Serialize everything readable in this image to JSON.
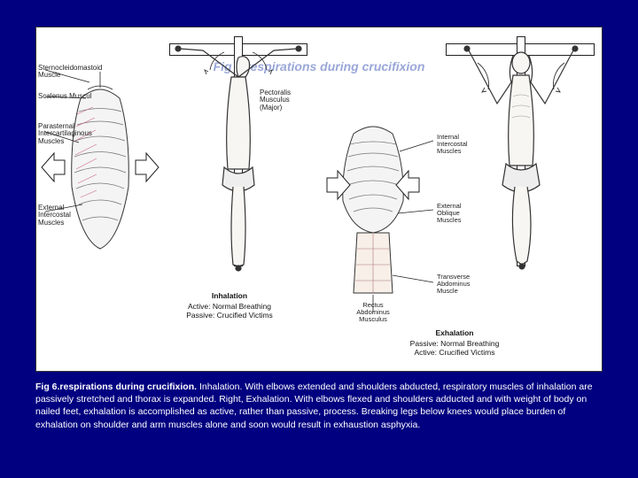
{
  "background_color": "#000080",
  "figure": {
    "title_overlay": "Fig 6.respirations during crucifixion",
    "panels": {
      "inhalation": {
        "heading": "Inhalation",
        "subheading1": "Active: Normal Breathing",
        "subheading2": "Passive: Crucified Victims",
        "labels": {
          "sternocleidomastoid": "Sternocleidomastoid\nMuscle",
          "scalenus": "Scalenus Muscul",
          "parasternal": "Parasternal\nIntercartilaginous\nMuscles",
          "external_intercostal": "External\nIntercostal\nMuscles",
          "pectoralis": "Pectoralis\nMusculus\n(Major)"
        }
      },
      "exhalation": {
        "heading": "Exhalation",
        "subheading1": "Passive: Normal Breathing",
        "subheading2": "Active: Crucified Victims",
        "labels": {
          "internal_intercostal": "Internal\nIntercostal\nMuscles",
          "external_oblique": "External\nOblique\nMuscles",
          "rectus_abdominus": "Rectus\nAbdominus\nMusculus",
          "transverse_abdominus": "Transverse\nAbdominus\nMuscle"
        }
      }
    }
  },
  "caption": {
    "bold": "Fig 6.respirations during crucifixion.",
    "rest": " Inhalation. With elbows extended and shoulders abducted, respiratory muscles of inhalation are passively stretched and thorax is expanded. Right, Exhalation. With elbows flexed and shoulders adducted and with weight of body on nailed feet, exhalation is accomplished as active, rather than passive, process. Breaking legs below knees would place burden of exhalation on shoulder and arm muscles alone and soon would result in exhaustion asphyxia."
  },
  "style": {
    "caption_fontsize": 10.5,
    "caption_color": "#ffffff",
    "label_fontsize": 8,
    "label_color": "#222222",
    "figure_bg": "#ffffff",
    "line_color": "#222222",
    "overlay_title_color": "#9aa7d8"
  }
}
